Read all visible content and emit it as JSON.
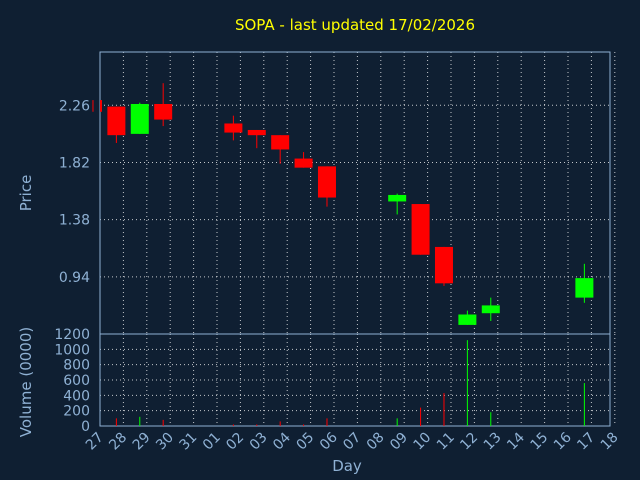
{
  "chart_data": {
    "type": "candlestick",
    "title": "SOPA - last updated 17/02/2026",
    "ylabel": "Price",
    "volume_label": "Volume (0000)",
    "xlabel": "Day",
    "x_ticks": [
      "27",
      "28",
      "29",
      "30",
      "31",
      "01",
      "02",
      "03",
      "04",
      "05",
      "06",
      "07",
      "08",
      "09",
      "10",
      "11",
      "12",
      "13",
      "14",
      "15",
      "16",
      "17",
      "18"
    ],
    "price_ticks": [
      "2.26",
      "1.82",
      "1.38",
      "0.94"
    ],
    "volume_ticks": [
      "1200",
      "1000",
      "800",
      "600",
      "400",
      "200",
      "0"
    ],
    "price_range": [
      0.5,
      2.67
    ],
    "volume_range": [
      0,
      1200
    ],
    "grid": true,
    "colors": {
      "up": "#00ff00",
      "down": "#ff0000",
      "grid": "#ffffff",
      "text": "#8fb1d4",
      "title": "#ffff00",
      "background": "#0f1f32"
    },
    "candles": [
      {
        "day": 26.7,
        "open": 2.3,
        "high": 2.3,
        "low": 2.21,
        "close": 2.21,
        "volume": 0
      },
      {
        "day": 27.7,
        "open": 2.25,
        "high": 2.25,
        "low": 1.97,
        "close": 2.03,
        "volume": 100
      },
      {
        "day": 28.7,
        "open": 2.04,
        "high": 2.28,
        "low": 2.04,
        "close": 2.27,
        "volume": 120
      },
      {
        "day": 29.7,
        "open": 2.27,
        "high": 2.43,
        "low": 2.1,
        "close": 2.15,
        "volume": 80
      },
      {
        "day": 32.7,
        "open": 2.12,
        "high": 2.18,
        "low": 1.99,
        "close": 2.05,
        "volume": 20
      },
      {
        "day": 33.7,
        "open": 2.07,
        "high": 2.07,
        "low": 1.93,
        "close": 2.03,
        "volume": 20
      },
      {
        "day": 34.7,
        "open": 2.03,
        "high": 2.03,
        "low": 1.81,
        "close": 1.92,
        "volume": 60
      },
      {
        "day": 35.7,
        "open": 1.85,
        "high": 1.9,
        "low": 1.78,
        "close": 1.78,
        "volume": 20
      },
      {
        "day": 36.7,
        "open": 1.79,
        "high": 1.79,
        "low": 1.48,
        "close": 1.55,
        "volume": 100
      },
      {
        "day": 39.7,
        "open": 1.52,
        "high": 1.58,
        "low": 1.42,
        "close": 1.57,
        "volume": 100
      },
      {
        "day": 40.7,
        "open": 1.5,
        "high": 1.5,
        "low": 1.11,
        "close": 1.11,
        "volume": 240
      },
      {
        "day": 41.7,
        "open": 1.17,
        "high": 1.17,
        "low": 0.87,
        "close": 0.89,
        "volume": 430
      },
      {
        "day": 42.7,
        "open": 0.57,
        "high": 0.68,
        "low": 0.57,
        "close": 0.65,
        "volume": 1120
      },
      {
        "day": 43.7,
        "open": 0.66,
        "high": 0.78,
        "low": 0.6,
        "close": 0.72,
        "volume": 180
      },
      {
        "day": 47.7,
        "open": 0.78,
        "high": 1.04,
        "low": 0.74,
        "close": 0.93,
        "volume": 560
      }
    ]
  }
}
